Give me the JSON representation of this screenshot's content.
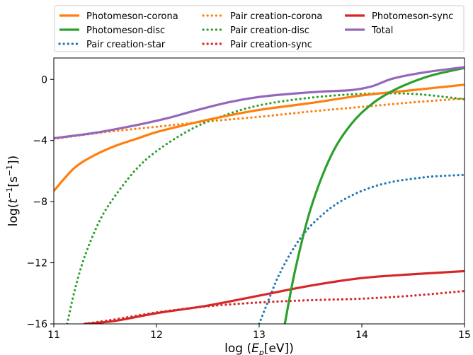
{
  "chart_data": {
    "type": "line",
    "xlabel_parts": [
      "log (",
      "E",
      "p",
      "[eV])"
    ],
    "ylabel_parts": [
      "log(",
      "t",
      "−1",
      "[s",
      "−1",
      "])"
    ],
    "xlim": [
      11,
      15
    ],
    "ylim": [
      -16,
      1.4
    ],
    "xticks": [
      11,
      12,
      13,
      14,
      15
    ],
    "xtick_labels": [
      "11",
      "12",
      "13",
      "14",
      "15"
    ],
    "yticks": [
      0,
      -4,
      -8,
      -12,
      -16
    ],
    "ytick_labels": [
      "0",
      "−4",
      "−8",
      "−12",
      "−16"
    ],
    "grid": false,
    "legend_placement": "top, above plot, 3 columns",
    "series": [
      {
        "name": "Photomeson-corona",
        "color": "#ff7f0e",
        "style": "solid",
        "x": [
          11.0,
          11.2,
          11.4,
          11.6,
          11.8,
          12.0,
          12.3,
          12.6,
          13.0,
          13.5,
          14.0,
          14.5,
          15.0
        ],
        "y": [
          -7.3,
          -5.8,
          -4.95,
          -4.35,
          -3.9,
          -3.45,
          -2.95,
          -2.5,
          -2.0,
          -1.55,
          -1.05,
          -0.7,
          -0.35
        ]
      },
      {
        "name": "Photomeson-disc",
        "color": "#2ca02c",
        "style": "solid",
        "x": [
          13.25,
          13.35,
          13.5,
          13.7,
          13.9,
          14.1,
          14.3,
          14.5,
          14.7,
          15.0
        ],
        "y": [
          -16,
          -12.5,
          -8.5,
          -5.0,
          -2.9,
          -1.6,
          -0.75,
          -0.15,
          0.3,
          0.75
        ]
      },
      {
        "name": "Pair creation-star",
        "color": "#1f77b4",
        "style": "dotted",
        "x": [
          13.0,
          13.1,
          13.2,
          13.35,
          13.5,
          13.7,
          13.9,
          14.1,
          14.3,
          14.5,
          14.7,
          15.0
        ],
        "y": [
          -16,
          -14.3,
          -12.7,
          -10.9,
          -9.6,
          -8.4,
          -7.6,
          -7.05,
          -6.7,
          -6.5,
          -6.35,
          -6.25
        ]
      },
      {
        "name": "Pair creation-corona",
        "color": "#ff7f0e",
        "style": "dotted",
        "x": [
          11.0,
          11.5,
          12.0,
          12.5,
          13.0,
          13.5,
          14.0,
          14.5,
          15.0
        ],
        "y": [
          -3.9,
          -3.45,
          -3.1,
          -2.75,
          -2.45,
          -2.1,
          -1.8,
          -1.5,
          -1.25
        ]
      },
      {
        "name": "Pair creation-disc",
        "color": "#2ca02c",
        "style": "dotted",
        "x": [
          11.13,
          11.2,
          11.3,
          11.45,
          11.6,
          11.8,
          12.0,
          12.3,
          12.6,
          13.0,
          13.5,
          14.0,
          14.5,
          15.0
        ],
        "y": [
          -16,
          -13.9,
          -11.6,
          -9.2,
          -7.6,
          -5.9,
          -4.7,
          -3.4,
          -2.5,
          -1.7,
          -1.2,
          -0.95,
          -0.95,
          -1.3
        ]
      },
      {
        "name": "Pair creation-sync",
        "color": "#d62728",
        "style": "dotted",
        "x": [
          11.3,
          11.6,
          12.0,
          12.5,
          13.0,
          13.5,
          14.0,
          14.5,
          15.0
        ],
        "y": [
          -16,
          -15.7,
          -15.25,
          -14.85,
          -14.6,
          -14.45,
          -14.35,
          -14.15,
          -13.85
        ]
      },
      {
        "name": "Photomeson-sync",
        "color": "#d62728",
        "style": "solid",
        "x": [
          11.3,
          11.6,
          12.0,
          12.5,
          13.0,
          13.5,
          14.0,
          14.5,
          15.0
        ],
        "y": [
          -16,
          -15.8,
          -15.3,
          -14.8,
          -14.15,
          -13.5,
          -13.0,
          -12.75,
          -12.55
        ]
      },
      {
        "name": "Total",
        "color": "#9467bd",
        "style": "solid",
        "x": [
          11.0,
          11.4,
          11.8,
          12.1,
          12.4,
          12.7,
          13.0,
          13.3,
          13.6,
          13.9,
          14.1,
          14.3,
          14.6,
          15.0
        ],
        "y": [
          -3.85,
          -3.5,
          -3.0,
          -2.55,
          -2.0,
          -1.5,
          -1.15,
          -0.95,
          -0.8,
          -0.7,
          -0.45,
          0.05,
          0.45,
          0.8
        ]
      }
    ]
  }
}
